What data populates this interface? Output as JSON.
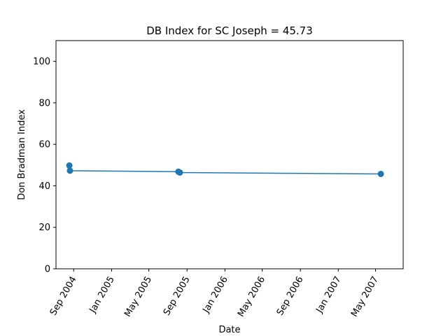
{
  "chart_data": {
    "type": "line",
    "title": "DB Index for SC Joseph = 45.73",
    "xlabel": "Date",
    "ylabel": "Don Bradman Index",
    "ylim": [
      0,
      110
    ],
    "yticks": [
      0,
      20,
      40,
      60,
      80,
      100
    ],
    "xlim": [
      "2004-07-06",
      "2007-07-29"
    ],
    "xticks": [
      {
        "date": "2004-09-01",
        "label": "Sep 2004"
      },
      {
        "date": "2005-01-01",
        "label": "Jan 2005"
      },
      {
        "date": "2005-05-01",
        "label": "May 2005"
      },
      {
        "date": "2005-09-01",
        "label": "Sep 2005"
      },
      {
        "date": "2006-01-01",
        "label": "Jan 2006"
      },
      {
        "date": "2006-05-01",
        "label": "May 2006"
      },
      {
        "date": "2006-09-01",
        "label": "Sep 2006"
      },
      {
        "date": "2007-01-01",
        "label": "Jan 2007"
      },
      {
        "date": "2007-05-01",
        "label": "May 2007"
      }
    ],
    "grid": false,
    "series": [
      {
        "color": "#1f77b4",
        "points": [
          {
            "x": "2004-08-18",
            "y": 49.8
          },
          {
            "x": "2004-08-20",
            "y": 47.3
          },
          {
            "x": "2005-08-04",
            "y": 46.8
          },
          {
            "x": "2005-08-09",
            "y": 46.4
          },
          {
            "x": "2007-05-18",
            "y": 45.73
          }
        ]
      }
    ]
  }
}
